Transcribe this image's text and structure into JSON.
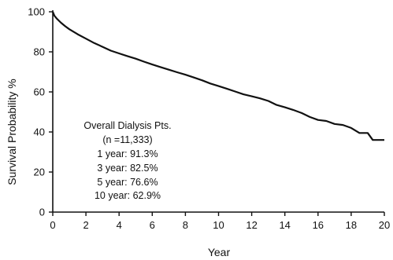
{
  "chart_data": {
    "type": "line",
    "xlabel": "Year",
    "ylabel": "Survival Probability %",
    "xlim": [
      0,
      20
    ],
    "ylim": [
      0,
      100
    ],
    "x_ticks": [
      "0",
      "2",
      "4",
      "6",
      "8",
      "10",
      "12",
      "14",
      "16",
      "18",
      "20"
    ],
    "y_ticks": [
      "0",
      "20",
      "40",
      "60",
      "80",
      "100"
    ],
    "grid": false,
    "series": [
      {
        "x": [
          0,
          0.1,
          0.25,
          0.5,
          0.75,
          1,
          1.5,
          2,
          2.5,
          3,
          3.5,
          4,
          4.5,
          5,
          5.5,
          6,
          6.5,
          7,
          7.5,
          8,
          8.5,
          9,
          9.5,
          10,
          10.5,
          11,
          11.5,
          12,
          12.5,
          13,
          13.5,
          14,
          14.5,
          15,
          15.5,
          16,
          16.5,
          17,
          17.5,
          18,
          18.5,
          19,
          19.3,
          19.5,
          20
        ],
        "y": [
          100,
          98,
          96.5,
          94.5,
          92.8,
          91.3,
          88.8,
          86.6,
          84.4,
          82.5,
          80.6,
          79.2,
          77.9,
          76.6,
          75.1,
          73.7,
          72.4,
          71.1,
          69.8,
          68.6,
          67.2,
          65.8,
          64.2,
          62.9,
          61.6,
          60.2,
          58.8,
          57.8,
          56.8,
          55.5,
          53.5,
          52.3,
          51,
          49.5,
          47.5,
          46,
          45.5,
          44,
          43.5,
          42,
          39.5,
          39.5,
          36,
          36,
          36
        ]
      }
    ],
    "annotations": [
      "Overall Dialysis Pts.",
      "(n =11,333)",
      "1 year: 91.3%",
      "3 year: 82.5%",
      "5 year: 76.6%",
      "10 year: 62.9%"
    ]
  }
}
